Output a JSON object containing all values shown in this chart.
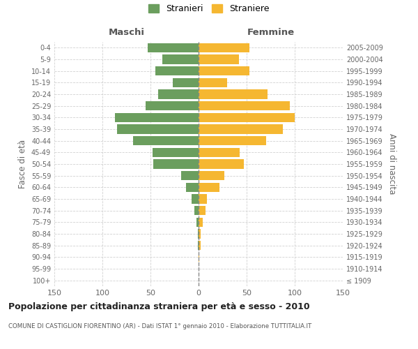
{
  "age_groups": [
    "100+",
    "95-99",
    "90-94",
    "85-89",
    "80-84",
    "75-79",
    "70-74",
    "65-69",
    "60-64",
    "55-59",
    "50-54",
    "45-49",
    "40-44",
    "35-39",
    "30-34",
    "25-29",
    "20-24",
    "15-19",
    "10-14",
    "5-9",
    "0-4"
  ],
  "birth_years": [
    "≤ 1909",
    "1910-1914",
    "1915-1919",
    "1920-1924",
    "1925-1929",
    "1930-1934",
    "1935-1939",
    "1940-1944",
    "1945-1949",
    "1950-1954",
    "1955-1959",
    "1960-1964",
    "1965-1969",
    "1970-1974",
    "1975-1979",
    "1980-1984",
    "1985-1989",
    "1990-1994",
    "1995-1999",
    "2000-2004",
    "2005-2009"
  ],
  "males": [
    0,
    0,
    0,
    1,
    1,
    2,
    4,
    7,
    13,
    18,
    47,
    48,
    68,
    85,
    87,
    55,
    42,
    27,
    45,
    38,
    53
  ],
  "females": [
    0,
    0,
    1,
    2,
    2,
    4,
    7,
    9,
    22,
    27,
    47,
    43,
    70,
    88,
    100,
    95,
    72,
    30,
    53,
    42,
    53
  ],
  "male_color": "#6b9e5e",
  "female_color": "#f5b731",
  "grid_color": "#cccccc",
  "title": "Popolazione per cittadinanza straniera per età e sesso - 2010",
  "subtitle": "COMUNE DI CASTIGLION FIORENTINO (AR) - Dati ISTAT 1° gennaio 2010 - Elaborazione TUTTITALIA.IT",
  "label_maschi": "Maschi",
  "label_femmine": "Femmine",
  "ylabel_left": "Fasce di età",
  "ylabel_right": "Anni di nascita",
  "xlim": 150,
  "legend_stranieri": "Stranieri",
  "legend_straniere": "Straniere"
}
